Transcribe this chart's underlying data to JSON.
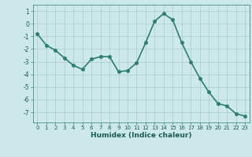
{
  "x": [
    0,
    1,
    2,
    3,
    4,
    5,
    6,
    7,
    8,
    9,
    10,
    11,
    12,
    13,
    14,
    15,
    16,
    17,
    18,
    19,
    20,
    21,
    22,
    23
  ],
  "y": [
    -0.8,
    -1.7,
    -2.1,
    -2.7,
    -3.3,
    -3.6,
    -2.8,
    -2.6,
    -2.6,
    -3.8,
    -3.7,
    -3.1,
    -1.5,
    0.2,
    0.8,
    0.3,
    -1.5,
    -3.0,
    -4.3,
    -5.4,
    -6.3,
    -6.5,
    -7.1,
    -7.3
  ],
  "line_color": "#2e7d6e",
  "marker": "o",
  "markersize": 2.5,
  "linewidth": 1.2,
  "xlabel": "Humidex (Indice chaleur)",
  "xlim": [
    -0.5,
    23.5
  ],
  "ylim": [
    -7.8,
    1.5
  ],
  "yticks": [
    1,
    0,
    -1,
    -2,
    -3,
    -4,
    -5,
    -6,
    -7
  ],
  "xticks": [
    0,
    1,
    2,
    3,
    4,
    5,
    6,
    7,
    8,
    9,
    10,
    11,
    12,
    13,
    14,
    15,
    16,
    17,
    18,
    19,
    20,
    21,
    22,
    23
  ],
  "background_color": "#cce8e8",
  "grid_color": "#aacccc",
  "tick_color": "#2e7d6e",
  "label_color": "#1a5c52"
}
